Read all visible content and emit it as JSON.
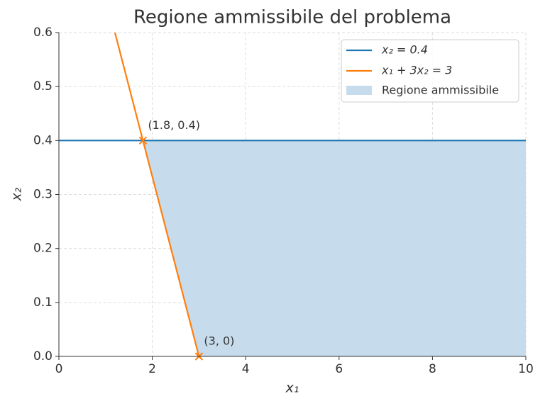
{
  "chart_data": {
    "type": "line",
    "title": "Regione ammissibile del problema",
    "xlabel": "x₁",
    "ylabel": "x₂",
    "xlim": [
      0,
      10
    ],
    "ylim": [
      0,
      0.6
    ],
    "xticks": [
      0,
      2,
      4,
      6,
      8,
      10
    ],
    "yticks": [
      {
        "value": 0,
        "label": "0.0"
      },
      0.1,
      0.2,
      0.3,
      0.4,
      0.5,
      0.6
    ],
    "grid": true,
    "legend": "upper right",
    "series": [
      {
        "name": "x₂ = 0.4",
        "color": "#1f77b4",
        "x": [
          0,
          10
        ],
        "values": [
          0.4,
          0.4
        ]
      },
      {
        "name": "x₁ + 3x₂ = 3",
        "color": "#ff7f0e",
        "x": [
          1.2,
          3
        ],
        "values": [
          0.6,
          0
        ]
      }
    ],
    "area": {
      "name": "Regione ammissibile",
      "color": "#c6dbec",
      "x": [
        1.8,
        3,
        10
      ],
      "lower": [
        0.4,
        0,
        0
      ],
      "upper": [
        0.4,
        0.4,
        0.4
      ]
    },
    "points": {
      "color": "#ff7f0e",
      "x": [
        1.8,
        3
      ],
      "values": [
        0.4,
        0
      ]
    },
    "annotations": [
      "(1.8, 0.4)",
      "(3, 0)"
    ]
  }
}
